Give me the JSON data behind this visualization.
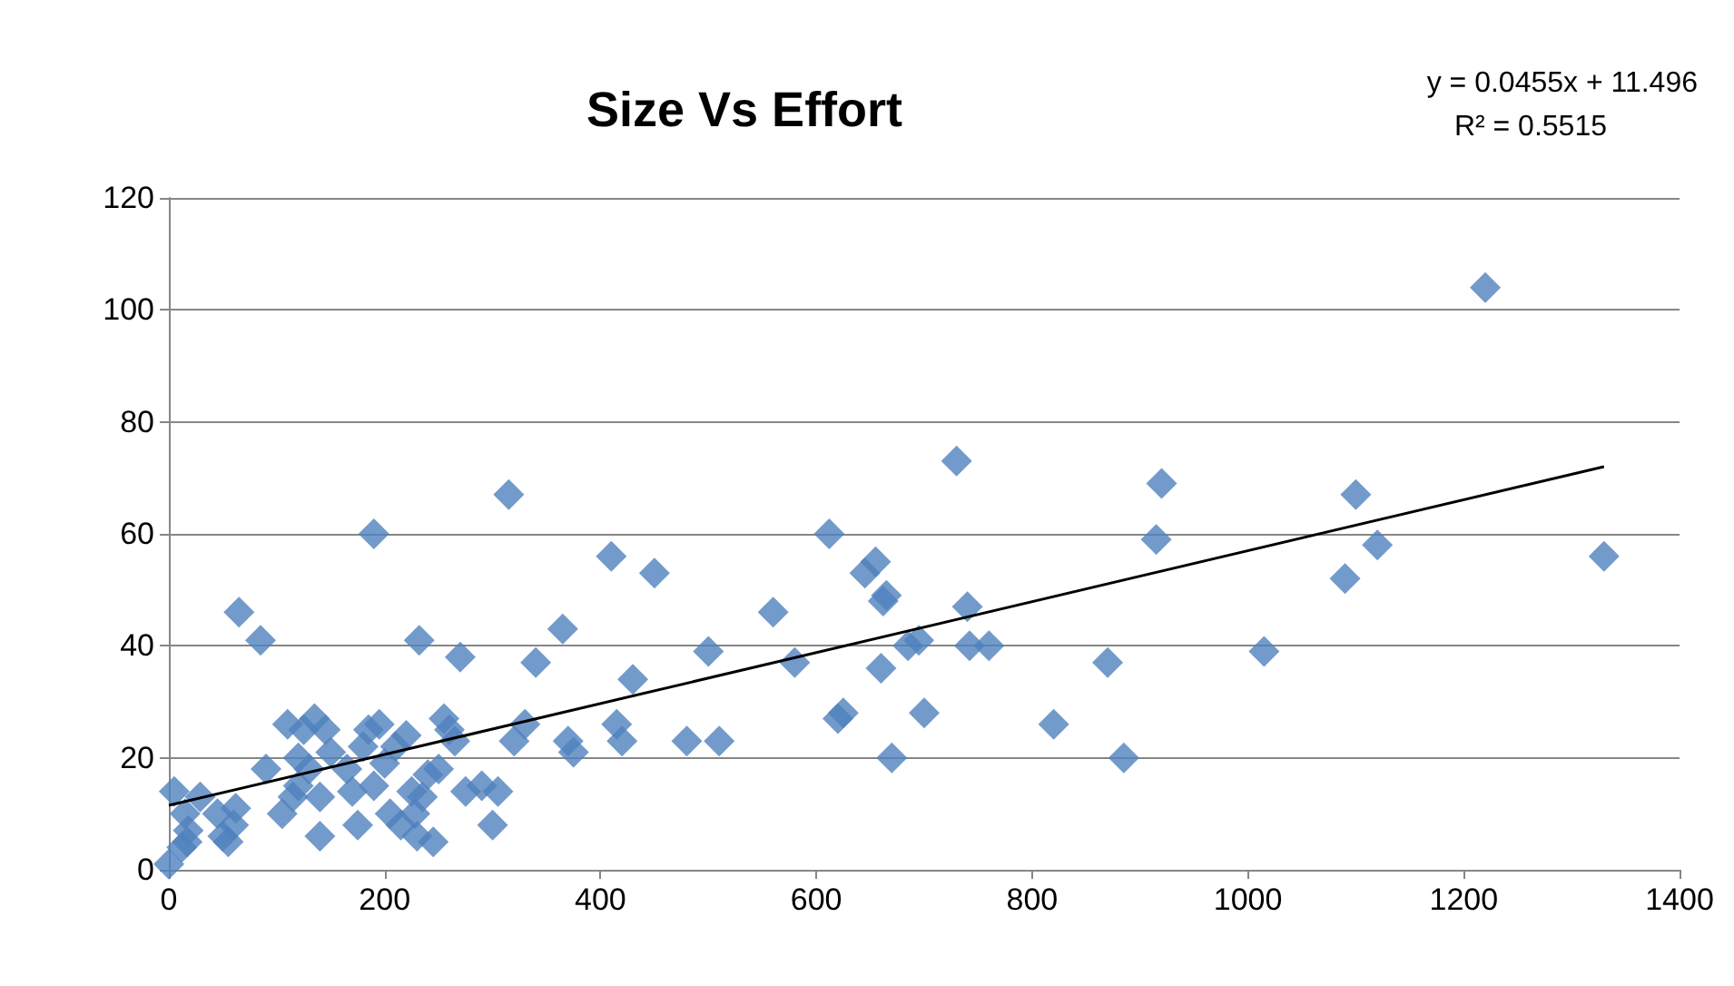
{
  "chart_data": {
    "type": "scatter",
    "title": "Size Vs Effort",
    "annotations": [
      "y = 0.0455x + 11.496",
      "R² = 0.5515"
    ],
    "xlim": [
      0,
      1400
    ],
    "xticks": [
      0,
      200,
      400,
      600,
      800,
      1000,
      1200,
      1400
    ],
    "ylim": [
      0,
      120
    ],
    "yticks": [
      0,
      20,
      40,
      60,
      80,
      100,
      120
    ],
    "grid": "y",
    "marker": "diamond",
    "series": [
      {
        "color": "#4f81bd",
        "x": [
          0,
          5,
          12,
          18,
          29,
          17,
          15,
          45,
          50,
          55,
          60,
          62,
          65,
          85,
          90,
          105,
          110,
          115,
          120,
          120,
          125,
          130,
          135,
          140,
          140,
          145,
          150,
          165,
          170,
          175,
          180,
          185,
          190,
          190,
          195,
          200,
          205,
          210,
          215,
          220,
          225,
          228,
          230,
          232,
          235,
          240,
          245,
          250,
          255,
          260,
          265,
          270,
          275,
          290,
          300,
          305,
          315,
          320,
          330,
          340,
          365,
          370,
          375,
          410,
          415,
          420,
          430,
          450,
          480,
          500,
          510,
          560,
          580,
          612,
          620,
          625,
          645,
          655,
          660,
          662,
          665,
          670,
          685,
          695,
          700,
          730,
          740,
          742,
          760,
          820,
          870,
          885,
          915,
          920,
          1015,
          1090,
          1100,
          1120,
          1220,
          1330
        ],
        "values": [
          1,
          14,
          4,
          7,
          13,
          5,
          10,
          10,
          6,
          5,
          8,
          11,
          46,
          41,
          18,
          10,
          26,
          13,
          15,
          20,
          25,
          18,
          27,
          6,
          13,
          25,
          21,
          18,
          14,
          8,
          22,
          25,
          60,
          15,
          26,
          19,
          10,
          22,
          8,
          24,
          14,
          10,
          6,
          41,
          13,
          17,
          5,
          18,
          27,
          25,
          23,
          38,
          14,
          15,
          8,
          14,
          67,
          23,
          26,
          37,
          43,
          23,
          21,
          56,
          26,
          23,
          34,
          53,
          23,
          39,
          23,
          46,
          37,
          60,
          27,
          28,
          53,
          55,
          36,
          48,
          49,
          20,
          40,
          41,
          28,
          73,
          47,
          40,
          40,
          26,
          37,
          20,
          59,
          69,
          39,
          52,
          67,
          58,
          104,
          56
        ]
      },
      {
        "type": "line",
        "color": "#000000",
        "marker": "none",
        "x": [
          0,
          1330
        ],
        "values": [
          11.5,
          72
        ]
      }
    ]
  }
}
